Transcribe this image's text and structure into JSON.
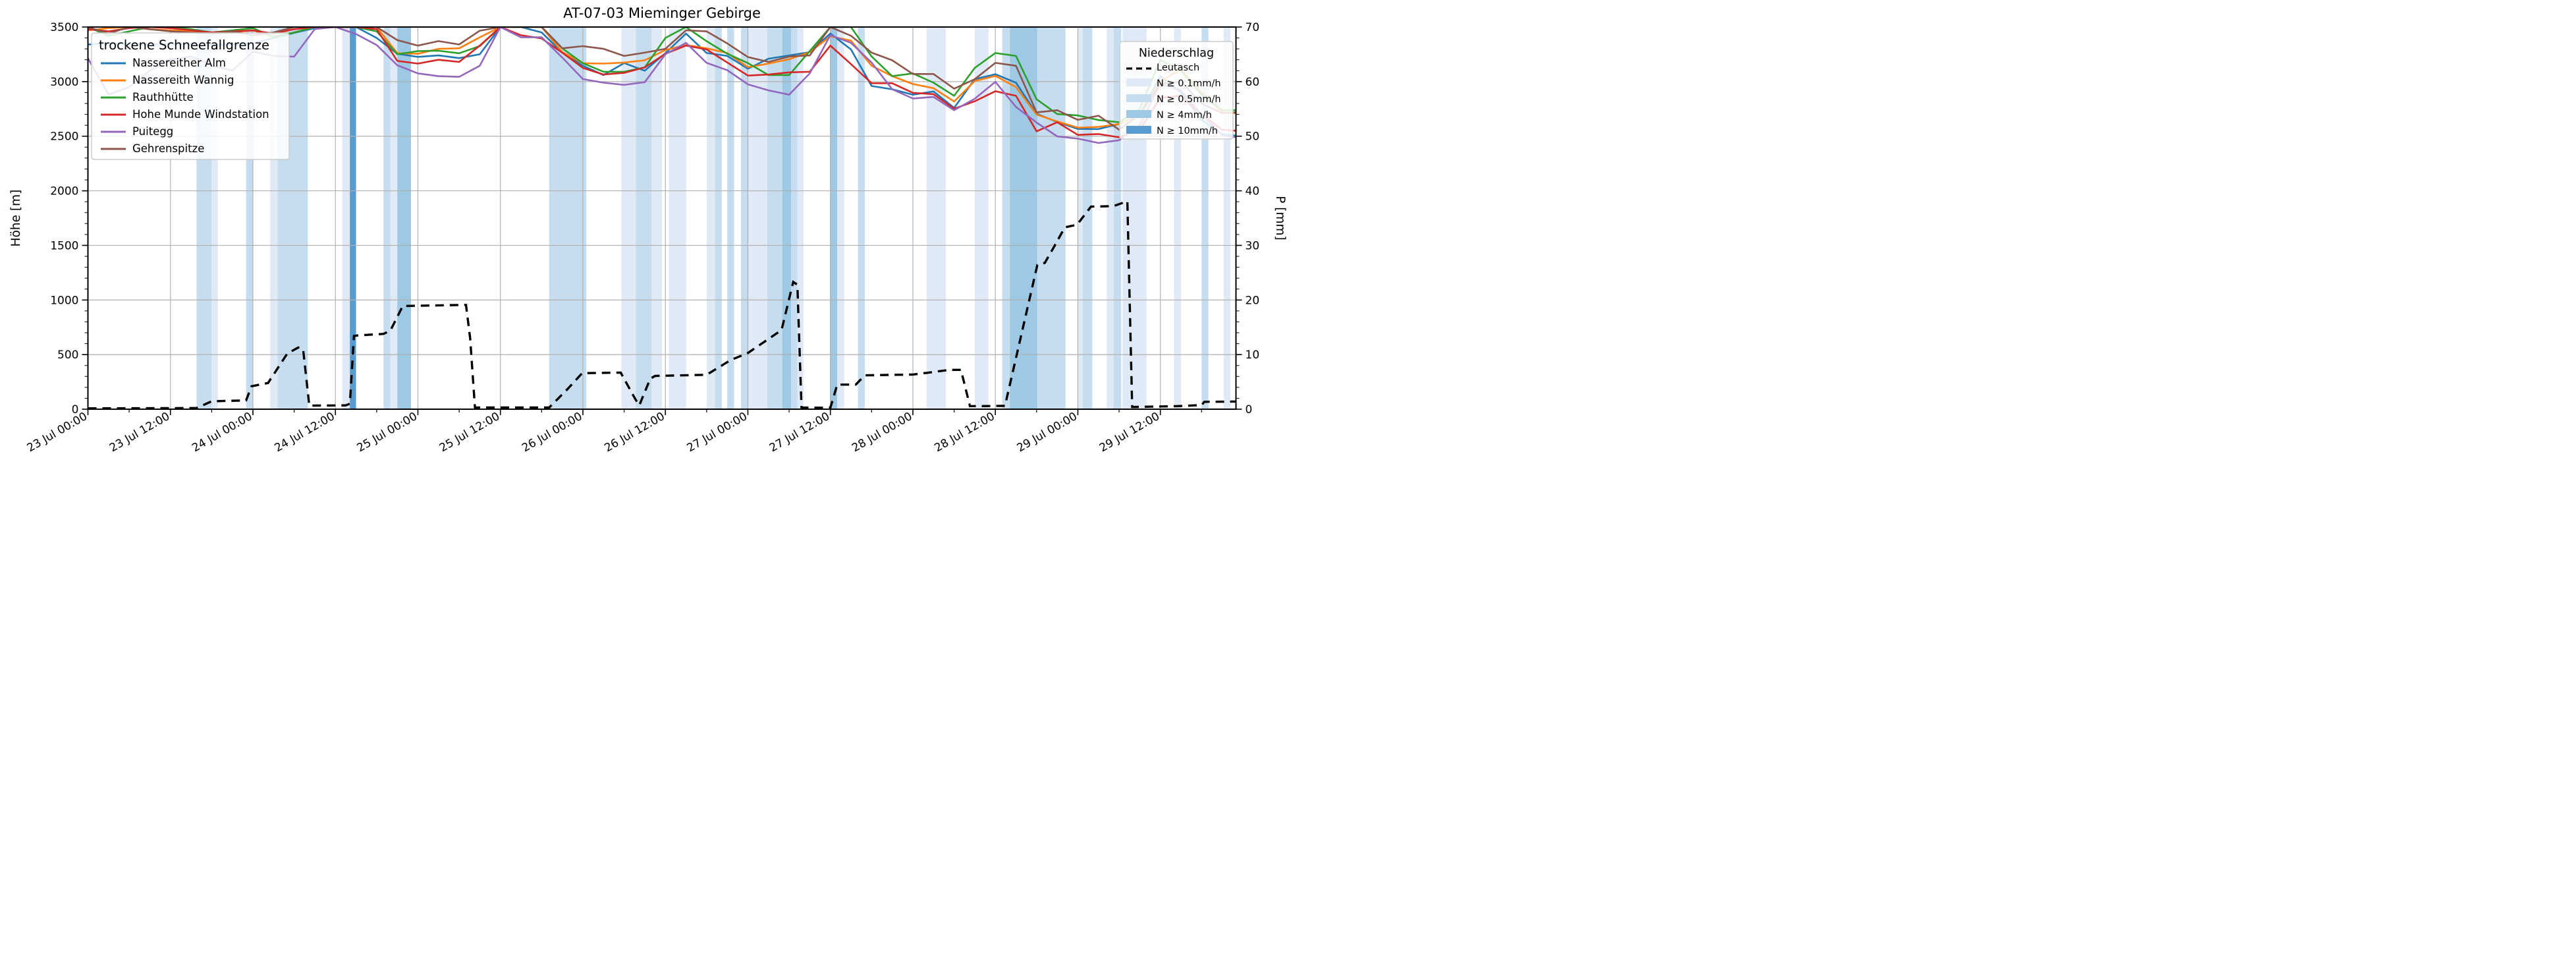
{
  "chart_data": {
    "type": "line",
    "title": "AT-07-03 Mieminger Gebirge",
    "ylabel_left": "Höhe [m]",
    "ylabel_right": "P [mm]",
    "ylim_left": [
      0,
      3500
    ],
    "ylim_right": [
      0,
      70
    ],
    "y_ticks_left": [
      0,
      500,
      1000,
      1500,
      2000,
      2500,
      3000,
      3500
    ],
    "y_ticks_right": [
      0,
      10,
      20,
      30,
      40,
      50,
      60,
      70
    ],
    "x_unit": "hours since 23 Jul 00:00",
    "x_range": [
      0,
      167
    ],
    "x_major_ticks": [
      {
        "t": 0,
        "label": "23 Jul 00:00"
      },
      {
        "t": 12,
        "label": "23 Jul 12:00"
      },
      {
        "t": 24,
        "label": "24 Jul 00:00"
      },
      {
        "t": 36,
        "label": "24 Jul 12:00"
      },
      {
        "t": 48,
        "label": "25 Jul 00:00"
      },
      {
        "t": 60,
        "label": "25 Jul 12:00"
      },
      {
        "t": 72,
        "label": "26 Jul 00:00"
      },
      {
        "t": 84,
        "label": "26 Jul 12:00"
      },
      {
        "t": 96,
        "label": "27 Jul 00:00"
      },
      {
        "t": 108,
        "label": "27 Jul 12:00"
      },
      {
        "t": 120,
        "label": "28 Jul 00:00"
      },
      {
        "t": 132,
        "label": "28 Jul 12:00"
      },
      {
        "t": 144,
        "label": "29 Jul 00:00"
      },
      {
        "t": 156,
        "label": "29 Jul 12:00"
      }
    ],
    "x_minor_step_h": 6,
    "grid_step_h": 12,
    "x": [
      0,
      3,
      6,
      9,
      12,
      15,
      18,
      21,
      24,
      27,
      30,
      33,
      36,
      39,
      42,
      45,
      48,
      51,
      54,
      57,
      60,
      63,
      66,
      69,
      72,
      75,
      78,
      81,
      84,
      87,
      90,
      93,
      96,
      99,
      102,
      105,
      108,
      111,
      114,
      117,
      120,
      123,
      126,
      129,
      132,
      135,
      138,
      141,
      144,
      147,
      150,
      153,
      156,
      159,
      162,
      165,
      167
    ],
    "series": [
      {
        "name": "Nassereither Alm",
        "color": "#1f77b4",
        "values": [
          3340,
          3350,
          3345,
          3340,
          3345,
          3340,
          3335,
          3340,
          3350,
          3400,
          3446,
          3490,
          3500,
          3500,
          3400,
          3255,
          3226,
          3240,
          3215,
          3250,
          3500,
          3500,
          3450,
          3265,
          3145,
          3060,
          3170,
          3100,
          3260,
          3440,
          3262,
          3235,
          3118,
          3210,
          3240,
          3270,
          3440,
          3295,
          2960,
          2930,
          2880,
          2910,
          2760,
          3022,
          3068,
          2990,
          2705,
          2630,
          2567,
          2565,
          2612,
          2700,
          3050,
          2900,
          2650,
          2520,
          2505
        ]
      },
      {
        "name": "Nassereith Wannig",
        "color": "#ff7f0e",
        "values": [
          3470,
          3490,
          3500,
          3480,
          3470,
          3460,
          3440,
          3450,
          3470,
          3410,
          3450,
          3500,
          3500,
          3500,
          3500,
          3260,
          3255,
          3300,
          3305,
          3405,
          3500,
          3500,
          3500,
          3270,
          3168,
          3165,
          3175,
          3195,
          3290,
          3335,
          3305,
          3262,
          3132,
          3165,
          3205,
          3270,
          3415,
          3375,
          3145,
          3050,
          2978,
          2940,
          2818,
          3005,
          3052,
          2950,
          2698,
          2635,
          2578,
          2585,
          2612,
          2700,
          3000,
          3113,
          2900,
          2720,
          2710
        ]
      },
      {
        "name": "Rauthhütte",
        "color": "#2ca02c",
        "values": [
          3500,
          3420,
          3460,
          3500,
          3500,
          3480,
          3450,
          3470,
          3490,
          3410,
          3450,
          3500,
          3500,
          3500,
          3460,
          3250,
          3280,
          3283,
          3260,
          3325,
          3500,
          3500,
          3500,
          3305,
          3168,
          3090,
          3090,
          3130,
          3400,
          3500,
          3370,
          3255,
          3170,
          3060,
          3060,
          3280,
          3500,
          3500,
          3230,
          3050,
          3075,
          2990,
          2870,
          3125,
          3262,
          3235,
          2838,
          2703,
          2690,
          2648,
          2628,
          2750,
          3200,
          3100,
          2880,
          2740,
          2738
        ]
      },
      {
        "name": "Hohe Munde Windstation",
        "color": "#d62728",
        "values": [
          3480,
          3460,
          3490,
          3500,
          3490,
          3470,
          3450,
          3460,
          3468,
          3440,
          3480,
          3500,
          3500,
          3500,
          3480,
          3190,
          3165,
          3200,
          3180,
          3330,
          3500,
          3425,
          3395,
          3265,
          3125,
          3065,
          3080,
          3130,
          3255,
          3330,
          3295,
          3175,
          3055,
          3065,
          3085,
          3090,
          3330,
          3160,
          2985,
          2985,
          2897,
          2885,
          2752,
          2820,
          2912,
          2870,
          2545,
          2628,
          2512,
          2520,
          2490,
          2560,
          2850,
          2870,
          2700,
          2560,
          2550
        ]
      },
      {
        "name": "Puitegg",
        "color": "#9467bd",
        "values": [
          3214,
          2880,
          2950,
          3100,
          3200,
          3230,
          3150,
          3100,
          3274,
          3235,
          3229,
          3481,
          3500,
          3436,
          3335,
          3150,
          3075,
          3050,
          3044,
          3145,
          3500,
          3406,
          3406,
          3220,
          3023,
          2990,
          2970,
          2995,
          3250,
          3355,
          3172,
          3105,
          2975,
          2920,
          2880,
          3075,
          3425,
          3355,
          3175,
          2930,
          2845,
          2860,
          2738,
          2843,
          2998,
          2768,
          2625,
          2498,
          2478,
          2438,
          2463,
          2600,
          2980,
          2920,
          2700,
          2510,
          2490
        ]
      },
      {
        "name": "Gehrenspitze",
        "color": "#8c564b",
        "values": [
          3500,
          3440,
          3500,
          3480,
          3460,
          3450,
          3440,
          3460,
          3425,
          3450,
          3500,
          3500,
          3500,
          3500,
          3500,
          3380,
          3330,
          3371,
          3340,
          3466,
          3500,
          3500,
          3500,
          3305,
          3325,
          3300,
          3235,
          3265,
          3300,
          3470,
          3460,
          3350,
          3225,
          3180,
          3230,
          3240,
          3500,
          3420,
          3265,
          3195,
          3070,
          3070,
          2935,
          3022,
          3172,
          3145,
          2718,
          2738,
          2650,
          2688,
          2560,
          2700,
          2980,
          3000,
          2800,
          2710,
          2720
        ]
      }
    ],
    "leutasch": {
      "name": "Leutasch",
      "color": "#000000",
      "points": [
        [
          0,
          0.15
        ],
        [
          15.8,
          0.2
        ],
        [
          18,
          1.45
        ],
        [
          23,
          1.6
        ],
        [
          23.8,
          4.2
        ],
        [
          26.2,
          4.8
        ],
        [
          29,
          10.2
        ],
        [
          30.6,
          11.3
        ],
        [
          31.3,
          11.0
        ],
        [
          32.2,
          0.65
        ],
        [
          37.5,
          0.7
        ],
        [
          38.1,
          1.0
        ],
        [
          38.7,
          13.4
        ],
        [
          39.2,
          13.5
        ],
        [
          43,
          13.8
        ],
        [
          44,
          14.4
        ],
        [
          45.8,
          18.9
        ],
        [
          55,
          19.1
        ],
        [
          55.6,
          13.0
        ],
        [
          56.3,
          0.3
        ],
        [
          67.1,
          0.3
        ],
        [
          69.7,
          3.6
        ],
        [
          71.9,
          6.6
        ],
        [
          77.5,
          6.7
        ],
        [
          79.6,
          1.9
        ],
        [
          80.2,
          0.7
        ],
        [
          81.8,
          5.6
        ],
        [
          82.5,
          6.1
        ],
        [
          90,
          6.3
        ],
        [
          93.5,
          9.0
        ],
        [
          96,
          10.3
        ],
        [
          100.9,
          14.5
        ],
        [
          102.6,
          23.3
        ],
        [
          103.2,
          22.8
        ],
        [
          103.8,
          0.3
        ],
        [
          108,
          0.25
        ],
        [
          109,
          4.5
        ],
        [
          111.7,
          4.5
        ],
        [
          113,
          6.2
        ],
        [
          120,
          6.35
        ],
        [
          122,
          6.65
        ],
        [
          125.3,
          7.2
        ],
        [
          127,
          7.2
        ],
        [
          128.3,
          0.55
        ],
        [
          133.4,
          0.6
        ],
        [
          135.3,
          11.0
        ],
        [
          138.1,
          26.4
        ],
        [
          139.2,
          26.8
        ],
        [
          140.6,
          29.9
        ],
        [
          142.1,
          33.3
        ],
        [
          143.9,
          33.8
        ],
        [
          145.9,
          37.1
        ],
        [
          149.2,
          37.2
        ],
        [
          151.2,
          38.1
        ],
        [
          151.9,
          0.4
        ],
        [
          158.3,
          0.55
        ],
        [
          162,
          0.75
        ],
        [
          162.4,
          1.35
        ],
        [
          167,
          1.4
        ]
      ]
    },
    "precip_bands": [
      [
        15.8,
        18,
        2
      ],
      [
        18,
        18.9,
        1
      ],
      [
        23,
        24,
        2
      ],
      [
        26.5,
        27.6,
        1
      ],
      [
        27.6,
        32,
        2
      ],
      [
        37,
        38.1,
        1
      ],
      [
        38.1,
        39,
        4
      ],
      [
        43,
        44,
        2
      ],
      [
        44,
        45,
        1
      ],
      [
        45,
        47,
        3
      ],
      [
        67.1,
        72.5,
        2
      ],
      [
        77.6,
        79.7,
        1
      ],
      [
        79.7,
        82,
        2
      ],
      [
        82,
        83.5,
        1
      ],
      [
        84.5,
        87,
        1
      ],
      [
        90,
        91.2,
        1
      ],
      [
        91.2,
        92.2,
        2
      ],
      [
        93,
        94,
        2
      ],
      [
        95,
        96,
        2
      ],
      [
        96,
        98.8,
        1
      ],
      [
        98.8,
        101,
        2
      ],
      [
        101,
        102.3,
        3
      ],
      [
        102.3,
        103.2,
        2
      ],
      [
        103.2,
        104.1,
        1
      ],
      [
        108,
        109,
        3
      ],
      [
        109,
        110,
        1
      ],
      [
        112,
        113,
        2
      ],
      [
        122,
        124.8,
        1
      ],
      [
        129,
        131,
        1
      ],
      [
        133,
        134.1,
        2
      ],
      [
        134.1,
        138.1,
        3
      ],
      [
        138.1,
        142.2,
        2
      ],
      [
        144,
        144.7,
        1
      ],
      [
        144.7,
        146.1,
        2
      ],
      [
        148.2,
        149.2,
        1
      ],
      [
        149.2,
        150.3,
        2
      ],
      [
        150.5,
        154,
        1
      ],
      [
        158,
        159,
        1
      ],
      [
        162,
        163,
        2
      ],
      [
        165.2,
        166.2,
        1
      ]
    ],
    "band_levels": {
      "1": {
        "label": "N ≥ 0.1mm/h",
        "color": "#dfeaf6"
      },
      "2": {
        "label": "N ≥ 0.5mm/h",
        "color": "#c6dcef"
      },
      "3": {
        "label": "N ≥ 4mm/h",
        "color": "#9ec9e4"
      },
      "4": {
        "label": "N ≥ 10mm/h",
        "color": "#589bd1"
      }
    },
    "grid_color": "#b0b0b0",
    "axis_color": "#000000"
  },
  "legend_snowline": {
    "title": "trockene Schneefallgrenze",
    "items": [
      "Nassereither Alm",
      "Nassereith Wannig",
      "Rauthhütte",
      "Hohe Munde Windstation",
      "Puitegg",
      "Gehrenspitze"
    ]
  },
  "legend_precip": {
    "title": "Niederschlag",
    "items": [
      "Leutasch",
      "N ≥ 0.1mm/h",
      "N ≥ 0.5mm/h",
      "N ≥ 4mm/h",
      "N ≥ 10mm/h"
    ]
  }
}
